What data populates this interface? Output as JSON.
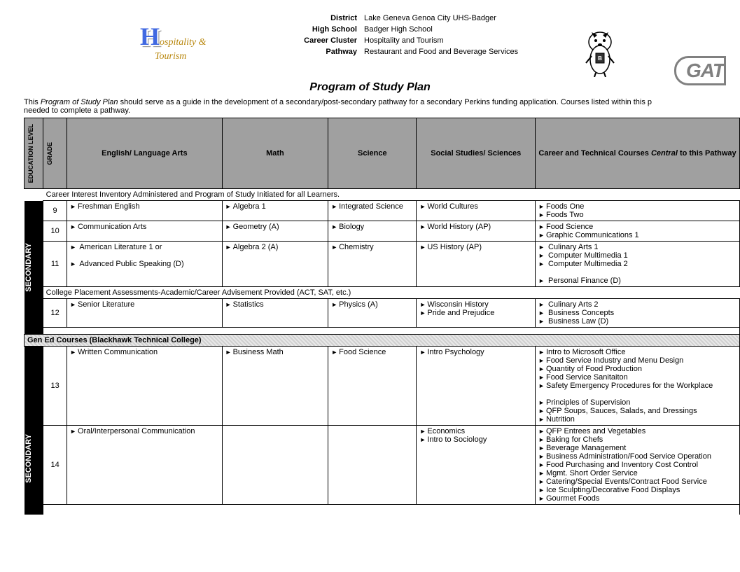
{
  "header": {
    "logoText1": "ospitality &",
    "logoText2": "Tourism",
    "rows": [
      {
        "label": "District",
        "value": "Lake Geneva Genoa City UHS-Badger"
      },
      {
        "label": "High School",
        "value": "Badger High School"
      },
      {
        "label": "Career Cluster",
        "value": "Hospitality and Tourism"
      },
      {
        "label": "Pathway",
        "value": "Restaurant and Food and Beverage Services"
      }
    ],
    "gatText": "GAT"
  },
  "title": "Program of Study Plan",
  "intro": {
    "prefix": "This ",
    "em": "Program of Study Plan",
    "rest": " should serve as a guide in the development of a secondary/post-secondary pathway for a secondary Perkins funding application.  Courses listed within this p",
    "line2": "needed to complete a pathway."
  },
  "columns": {
    "edlevel": "EDUCATION LEVEL",
    "grade": "GRADE",
    "ela": "English/ Language Arts",
    "math": "Math",
    "sci": "Science",
    "ss": "Social Studies/ Sciences",
    "cte_a": "Career and Technical Courses ",
    "cte_em": "Central",
    "cte_b": " to this Pathway"
  },
  "band1": "Career Interest Inventory Administered and Program of Study Initiated for all Learners.",
  "band2": "College Placement Assessments-Academic/Career Advisement Provided (ACT, SAT, etc.)",
  "gened": "Gen Ed Courses (Blackhawk Technical College)",
  "secLabel": "SECONDARY",
  "grades": {
    "g9": {
      "num": "9",
      "ela": [
        "Freshman English"
      ],
      "math": [
        "Algebra 1"
      ],
      "sci": [
        "Integrated Science"
      ],
      "ss": [
        "World Cultures"
      ],
      "cte": [
        "Foods One",
        "Foods Two"
      ]
    },
    "g10": {
      "num": "10",
      "ela": [
        "Communication Arts"
      ],
      "math": [
        "Geometry (A)"
      ],
      "sci": [
        "Biology"
      ],
      "ss": [
        "World History (AP)"
      ],
      "cte": [
        "Food Science",
        "Graphic Communications 1"
      ]
    },
    "g11": {
      "num": "11",
      "ela": [
        " American Literature 1 or",
        "",
        " Advanced Public Speaking (D)"
      ],
      "math": [
        "Algebra 2 (A)"
      ],
      "sci": [
        "Chemistry"
      ],
      "ss": [
        "US History (AP)"
      ],
      "cte": [
        " Culinary Arts 1",
        " Computer Multimedia 1",
        " Computer Multimedia 2",
        "",
        " Personal Finance (D)"
      ]
    },
    "g12": {
      "num": "12",
      "ela": [
        "Senior Literature"
      ],
      "math": [
        "Statistics"
      ],
      "sci": [
        "Physics (A)"
      ],
      "ss": [
        "Wisconsin History",
        "Pride and Prejudice"
      ],
      "cte": [
        " Culinary Arts 2",
        " Business Concepts",
        " Business Law (D)"
      ]
    },
    "g13": {
      "num": "13",
      "ela": [
        "Written Communication"
      ],
      "math": [
        "Business Math"
      ],
      "sci": [
        "Food Science"
      ],
      "ss": [
        "Intro Psychology"
      ],
      "cte": [
        "Intro to Microsoft Office",
        "Food Service Industry and Menu Design",
        "Quantity of Food Production",
        "Food Service Sanitaiton",
        "Safety Emergency Procedures for the Workplace",
        "",
        "Principles of Supervision",
        "QFP Soups, Sauces, Salads, and Dressings",
        "Nutrition"
      ]
    },
    "g14": {
      "num": "14",
      "ela": [
        "Oral/Interpersonal Communication"
      ],
      "math": [],
      "sci": [],
      "ss": [
        "Economics",
        "Intro to Sociology"
      ],
      "cte": [
        "QFP Entrees and Vegetables",
        "Baking for Chefs",
        "Beverage Management",
        "Business Administration/Food Service Operation",
        "Food Purchasing and Inventory Cost Control",
        "Mgmt. Short Order Service",
        "Catering/Special Events/Contract Food Service",
        "Ice Sculpting/Decorative Food Displays",
        "Gourmet Foods"
      ]
    }
  },
  "style": {
    "headerBg": "#a0a0a0",
    "bandBg": "#000000",
    "bandFg": "#ffffff",
    "border": "#000000",
    "bodyFontSize": 11,
    "titleFontSize": 16,
    "vertFontSize": 9,
    "colWidths": {
      "edlevel": 24,
      "grade": 30,
      "ela": 196,
      "math": 134,
      "sci": 88,
      "ss": 150,
      "cte": 258
    }
  }
}
